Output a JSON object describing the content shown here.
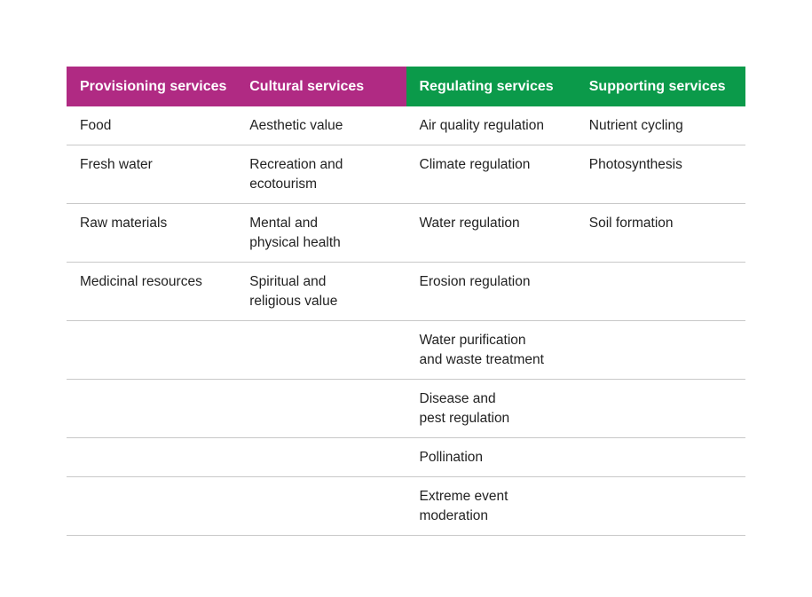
{
  "colors": {
    "header_magenta": "#b02a83",
    "header_green": "#0b9a4a",
    "rule": "#c8c8c8"
  },
  "table": {
    "headers": [
      "Provisioning services",
      "Cultural services",
      "Regulating services",
      "Supporting services"
    ],
    "rows": [
      [
        [
          "Food"
        ],
        [
          "Aesthetic value"
        ],
        [
          "Air quality regulation"
        ],
        [
          "Nutrient cycling"
        ]
      ],
      [
        [
          "Fresh water"
        ],
        [
          "Recreation and",
          "ecotourism"
        ],
        [
          "Climate regulation"
        ],
        [
          "Photosynthesis"
        ]
      ],
      [
        [
          "Raw materials"
        ],
        [
          "Mental and",
          "physical health"
        ],
        [
          "Water regulation"
        ],
        [
          "Soil formation"
        ]
      ],
      [
        [
          "Medicinal resources"
        ],
        [
          "Spiritual and",
          "religious value"
        ],
        [
          "Erosion regulation"
        ],
        []
      ],
      [
        [],
        [],
        [
          "Water purification",
          "and waste treatment"
        ],
        []
      ],
      [
        [],
        [],
        [
          "Disease and",
          "pest regulation"
        ],
        []
      ],
      [
        [],
        [],
        [
          "Pollination"
        ],
        []
      ],
      [
        [],
        [],
        [
          "Extreme event",
          "moderation"
        ],
        []
      ]
    ]
  }
}
